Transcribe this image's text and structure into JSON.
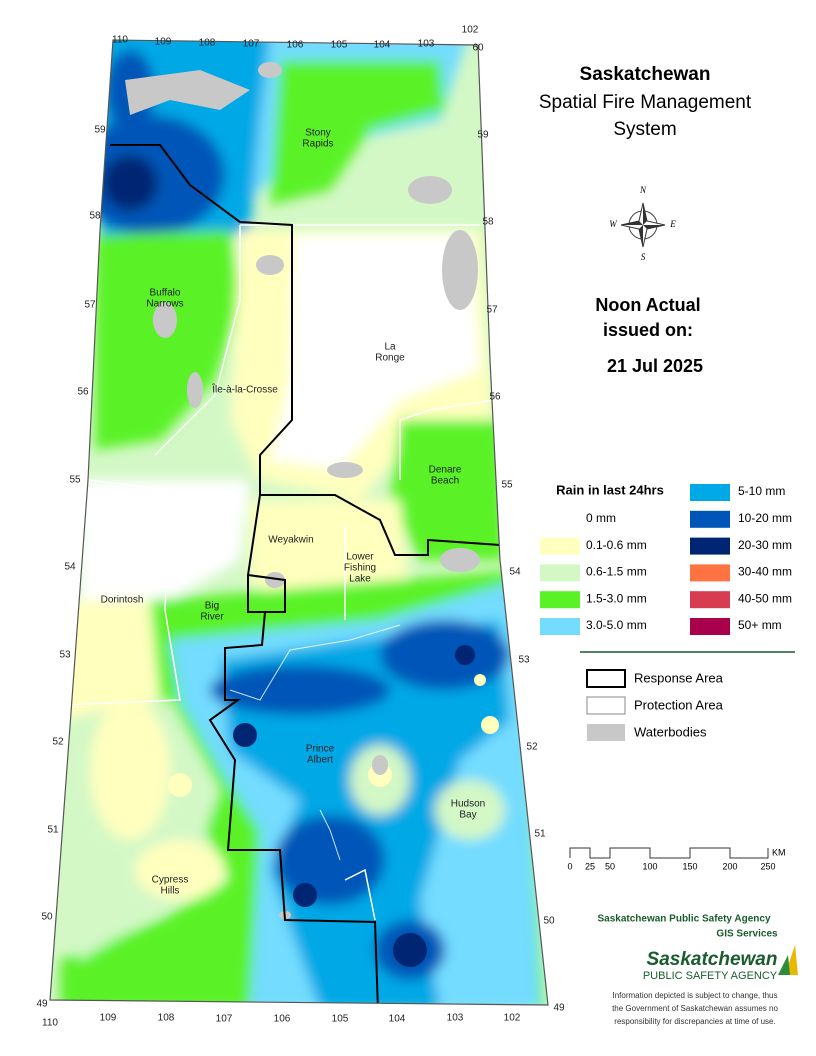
{
  "header": {
    "title": "Saskatchewan",
    "subtitle": [
      "Spatial Fire Management",
      "System"
    ]
  },
  "compass": [
    "N",
    "E",
    "S",
    "W"
  ],
  "report": {
    "line1": "Noon Actual",
    "line2": "issued on:",
    "date": "21 Jul 2025"
  },
  "rain_legend": {
    "title": "Rain in last 24hrs",
    "items": [
      {
        "label": "0 mm",
        "color": "#ffffff"
      },
      {
        "label": "0.1-0.6 mm",
        "color": "#ffffbe"
      },
      {
        "label": "0.6-1.5 mm",
        "color": "#d3f8c6"
      },
      {
        "label": "1.5-3.0 mm",
        "color": "#5af226"
      },
      {
        "label": "3.0-5.0 mm",
        "color": "#73dcff"
      },
      {
        "label": "5-10 mm",
        "color": "#00a8e6"
      },
      {
        "label": "10-20 mm",
        "color": "#0056b8"
      },
      {
        "label": "20-30 mm",
        "color": "#002673"
      },
      {
        "label": "30-40 mm",
        "color": "#ff7342"
      },
      {
        "label": "40-50 mm",
        "color": "#d83c50"
      },
      {
        "label": "50+ mm",
        "color": "#a8004a"
      }
    ]
  },
  "layer_legend": [
    "Response Area",
    "Protection Area",
    "Waterbodies"
  ],
  "scale": {
    "labels": [
      "0",
      "25",
      "50",
      "100",
      "150",
      "200",
      "250"
    ],
    "unit": "KM"
  },
  "grid": {
    "top": [
      "110",
      "109",
      "108",
      "107",
      "106",
      "105",
      "104",
      "103",
      "102",
      "60"
    ],
    "bottom": [
      "110",
      "109",
      "108",
      "107",
      "106",
      "105",
      "104",
      "103",
      "102"
    ],
    "left": [
      "59",
      "58",
      "57",
      "56",
      "55",
      "54",
      "53",
      "52",
      "51",
      "50",
      "49"
    ],
    "right": [
      "59",
      "58",
      "57",
      "56",
      "55",
      "54",
      "53",
      "52",
      "51",
      "50",
      "49"
    ]
  },
  "places": [
    {
      "lines": [
        "Stony",
        "Rapids"
      ]
    },
    {
      "lines": [
        "Buffalo",
        "Narrows"
      ]
    },
    {
      "lines": [
        "Île-à-la-Crosse"
      ]
    },
    {
      "lines": [
        "La",
        "Ronge"
      ]
    },
    {
      "lines": [
        "Denare",
        "Beach"
      ]
    },
    {
      "lines": [
        "Weyakwin"
      ]
    },
    {
      "lines": [
        "Lower",
        "Fishing",
        "Lake"
      ]
    },
    {
      "lines": [
        "Dorintosh"
      ]
    },
    {
      "lines": [
        "Big",
        "River"
      ]
    },
    {
      "lines": [
        "Prince",
        "Albert"
      ]
    },
    {
      "lines": [
        "Hudson",
        "Bay"
      ]
    },
    {
      "lines": [
        "Cypress",
        "Hills"
      ]
    }
  ],
  "footer": {
    "agency": "Saskatchewan Public Safety Agency",
    "unit": "GIS  Services",
    "logo_main": "Saskatchewan",
    "logo_sub": "PUBLIC SAFETY AGENCY",
    "disclaimer": [
      "Information depicted is subject to change, thus",
      "the Government of Saskatchewan assumes no",
      "responsibility for discrepancies at time of use."
    ]
  }
}
